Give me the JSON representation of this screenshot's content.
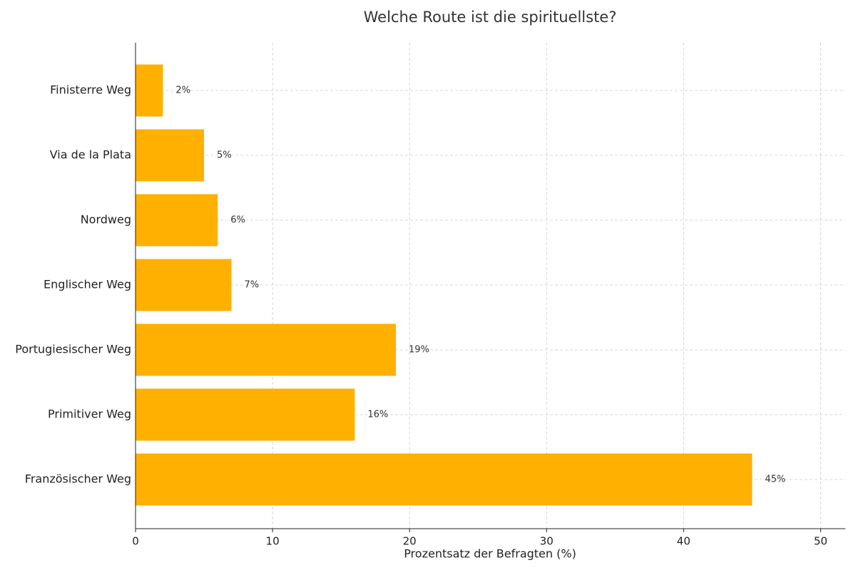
{
  "chart_data": {
    "type": "barh",
    "title": "Welche Route ist die spirituellste?",
    "x_label": "Prozentsatz der Befragten (%)",
    "categories": [
      "Finisterre Weg",
      "Via de la Plata",
      "Nordweg",
      "Englischer Weg",
      "Portugiesischer Weg",
      "Primitiver Weg",
      "Französischer Weg"
    ],
    "values": [
      2,
      5,
      6,
      7,
      19,
      16,
      45
    ],
    "value_labels": [
      "2%",
      "5%",
      "6%",
      "7%",
      "19%",
      "16%",
      "45%"
    ],
    "color": "#ffb000",
    "xlim": [
      0,
      51.8
    ],
    "xticks": [
      0,
      10,
      20,
      30,
      40,
      50
    ],
    "grid": true
  }
}
